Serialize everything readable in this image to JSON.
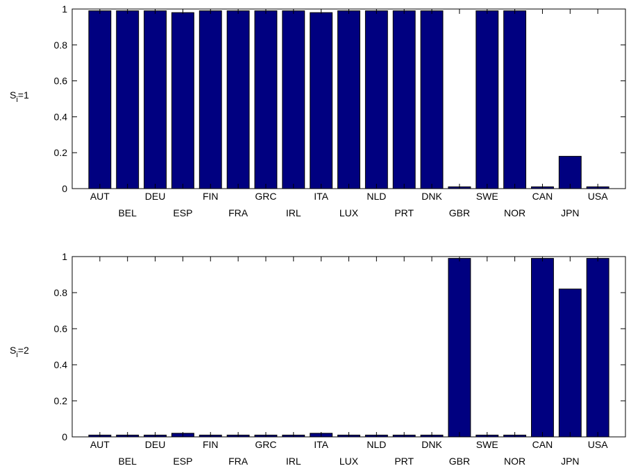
{
  "chart_data": [
    {
      "type": "bar",
      "ylabel": "S",
      "ylabel_subscript": "i",
      "ylabel_suffix": "=1",
      "ylim": [
        0,
        1
      ],
      "yticks": [
        "0",
        "0.2",
        "0.4",
        "0.6",
        "0.8",
        "1"
      ],
      "grid": false,
      "bar_color": "#000080",
      "categories": [
        "AUT",
        "BEL",
        "DEU",
        "ESP",
        "FIN",
        "FRA",
        "GRC",
        "IRL",
        "ITA",
        "LUX",
        "NLD",
        "PRT",
        "DNK",
        "GBR",
        "SWE",
        "NOR",
        "CAN",
        "JPN",
        "USA"
      ],
      "values": [
        0.99,
        0.99,
        0.99,
        0.98,
        0.99,
        0.99,
        0.99,
        0.99,
        0.98,
        0.99,
        0.99,
        0.99,
        0.99,
        0.01,
        0.99,
        0.99,
        0.01,
        0.18,
        0.01
      ]
    },
    {
      "type": "bar",
      "ylabel": "S",
      "ylabel_subscript": "i",
      "ylabel_suffix": "=2",
      "ylim": [
        0,
        1
      ],
      "yticks": [
        "0",
        "0.2",
        "0.4",
        "0.6",
        "0.8",
        "1"
      ],
      "grid": false,
      "bar_color": "#000080",
      "categories": [
        "AUT",
        "BEL",
        "DEU",
        "ESP",
        "FIN",
        "FRA",
        "GRC",
        "IRL",
        "ITA",
        "LUX",
        "NLD",
        "PRT",
        "DNK",
        "GBR",
        "SWE",
        "NOR",
        "CAN",
        "JPN",
        "USA"
      ],
      "values": [
        0.01,
        0.01,
        0.01,
        0.02,
        0.01,
        0.01,
        0.01,
        0.01,
        0.02,
        0.01,
        0.01,
        0.01,
        0.01,
        0.99,
        0.01,
        0.01,
        0.99,
        0.82,
        0.99
      ]
    }
  ]
}
